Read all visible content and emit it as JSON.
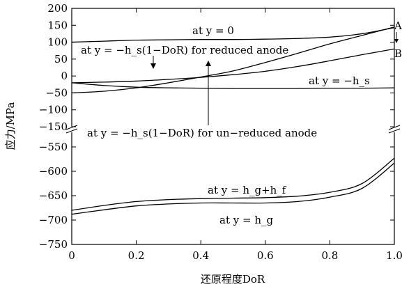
{
  "chart_data": {
    "type": "line",
    "title": "",
    "xlabel": "还原程度DoR",
    "ylabel": "应力/MPa",
    "xlim": [
      0,
      1.0
    ],
    "x_ticks": [
      "0",
      "0.2",
      "0.4",
      "0.6",
      "0.8",
      "1.0"
    ],
    "y_ticks_upper": [
      "200",
      "150",
      "100",
      "50",
      "0",
      "−50",
      "−100",
      "−150"
    ],
    "y_ticks_lower": [
      "−550",
      "−600",
      "−650",
      "−700",
      "−750"
    ],
    "ylim_upper": [
      -150,
      200
    ],
    "ylim_lower": [
      -750,
      -520
    ],
    "axis_break": "between −150 and −520",
    "grid": false,
    "legend": "none",
    "x": [
      0,
      0.1,
      0.2,
      0.3,
      0.4,
      0.5,
      0.6,
      0.7,
      0.8,
      0.9,
      1.0
    ],
    "series": [
      {
        "values": [
          100,
          103,
          106,
          107,
          108,
          108,
          109,
          111,
          115,
          125,
          143
        ]
      },
      {
        "values": [
          -20,
          -18,
          -15,
          -10,
          -4,
          4,
          14,
          28,
          45,
          63,
          80
        ]
      },
      {
        "values": [
          -50,
          -45,
          -35,
          -20,
          -3,
          15,
          40,
          67,
          95,
          120,
          145
        ]
      },
      {
        "values": [
          -20,
          -28,
          -33,
          -35,
          -36,
          -37,
          -37,
          -37,
          -36,
          -36,
          -35
        ]
      },
      {
        "values": [
          -680,
          -670,
          -662,
          -658,
          -656,
          -655,
          -654,
          -651,
          -643,
          -625,
          -573
        ]
      },
      {
        "values": [
          -688,
          -679,
          -671,
          -667,
          -665,
          -665,
          -665,
          -662,
          -653,
          -635,
          -583
        ]
      }
    ],
    "annotations": [
      {
        "text": "at y = 0"
      },
      {
        "text": "at y = −h_s(1−DoR) for reduced anode"
      },
      {
        "text": "at y = −h_s"
      },
      {
        "text": "at y = −h_s(1−DoR) for un−reduced anode"
      },
      {
        "text": "at y = h_g+h_f"
      },
      {
        "text": "at y = h_g"
      },
      {
        "text": "A"
      },
      {
        "text": "B"
      }
    ]
  }
}
